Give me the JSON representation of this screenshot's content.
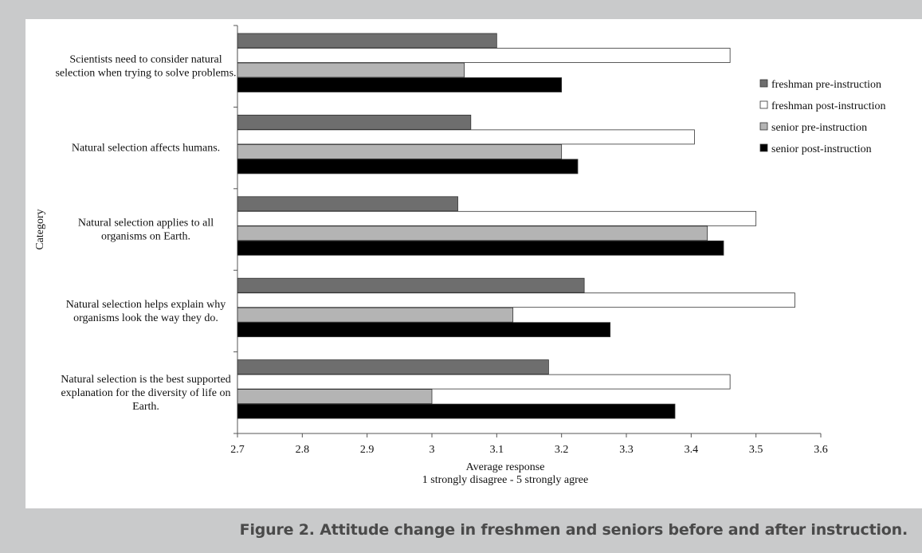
{
  "caption": "Figure 2. Attitude change in freshmen and seniors before and after instruction.",
  "chart_data": {
    "type": "bar",
    "orientation": "horizontal",
    "categories": [
      [
        "Scientists need to consider  natural",
        "selection when trying to solve problems."
      ],
      [
        "Natural  selection affects humans."
      ],
      [
        "Natural  selection applies to all",
        "organisms on Earth."
      ],
      [
        "Natural  selection helps explain why",
        "organisms look the way they do."
      ],
      [
        "Natural selection is the best supported",
        "explanation for the diversity of life on",
        "Earth."
      ]
    ],
    "series": [
      {
        "name": "freshman pre-instruction",
        "color": "#6e6e6e",
        "values": [
          3.1,
          3.06,
          3.04,
          3.235,
          3.18
        ]
      },
      {
        "name": "freshman post-instruction",
        "color": "#ffffff",
        "values": [
          3.46,
          3.405,
          3.5,
          3.56,
          3.46
        ]
      },
      {
        "name": "senior pre-instruction",
        "color": "#b4b4b4",
        "values": [
          3.05,
          3.2,
          3.425,
          3.125,
          3.0
        ]
      },
      {
        "name": "senior post-instruction",
        "color": "#000000",
        "values": [
          3.2,
          3.225,
          3.45,
          3.275,
          3.375
        ]
      }
    ],
    "xticks": [
      "2.7",
      "2.8",
      "2.9",
      "3",
      "3.1",
      "3.2",
      "3.3",
      "3.4",
      "3.5",
      "3.6"
    ],
    "xlim": [
      2.7,
      3.6
    ],
    "xlabel": [
      "Average response",
      "1 strongly disagree - 5 strongly agree"
    ],
    "ylabel": "Category",
    "legend_position": "right",
    "grid": false
  }
}
